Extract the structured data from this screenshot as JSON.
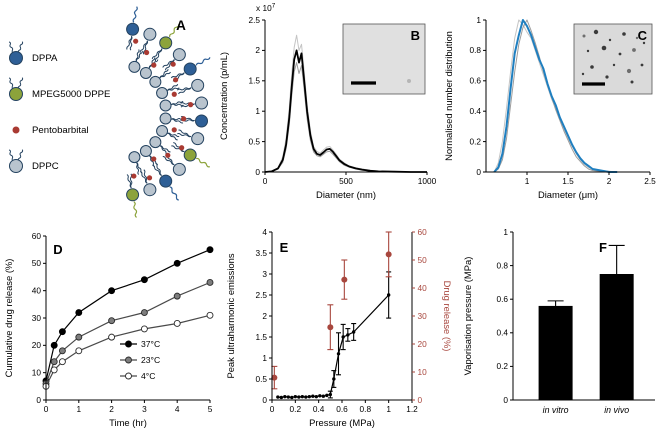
{
  "figure": {
    "background": "#ffffff",
    "panel_A": {
      "letter": "A",
      "legend": [
        {
          "label": "DPPA",
          "color": "#2e5f96",
          "icon": "lipid-icon"
        },
        {
          "label": "MPEG5000 DPPE",
          "color": "#8ca33b",
          "icon": "lipid-peg-icon"
        },
        {
          "label": "Pentobarbital",
          "color": "#a93a32",
          "icon": "drug-dot-icon"
        },
        {
          "label": "DPPC",
          "color": "#b9c4ce",
          "icon": "lipid-icon"
        }
      ],
      "schematic": {
        "outline_color": "#24425f",
        "default_head_color": "#b9c4ce",
        "accent_head_colors": [
          "#2e5f96",
          "#8ca33b"
        ],
        "inner_head_color": "#b9c4ce",
        "drug_dot_color": "#a93a32"
      }
    }
  },
  "chart_data": [
    {
      "panel": "B",
      "type": "line",
      "xlabel": "Diameter (nm)",
      "ylabel": "Concentration (p/mL)",
      "scale_prefix": "x 10",
      "scale_exponent": "7",
      "xlim": [
        0,
        1000
      ],
      "ylim": [
        0,
        2.5
      ],
      "xtick_values": [
        0,
        500,
        1000
      ],
      "xtick_labels": [
        "0",
        "500",
        "1000"
      ],
      "ytick_values": [
        0,
        0.5,
        1,
        1.5,
        2,
        2.5
      ],
      "ytick_labels": [
        "0",
        "0.5",
        "1",
        "1.5",
        "2",
        "2.5"
      ],
      "x": [
        0,
        40,
        80,
        110,
        130,
        150,
        165,
        180,
        195,
        210,
        225,
        240,
        260,
        280,
        300,
        320,
        340,
        360,
        380,
        400,
        420,
        440,
        460,
        490,
        520,
        560,
        600,
        650,
        700,
        800,
        900,
        1000
      ],
      "series": [
        {
          "name": "replicate-1",
          "color": "#c4c4c4",
          "width": 1,
          "y": [
            0,
            0.01,
            0.07,
            0.25,
            0.55,
            1.05,
            1.6,
            2.05,
            2.25,
            2.0,
            2.1,
            1.7,
            1.1,
            0.68,
            0.42,
            0.34,
            0.31,
            0.36,
            0.41,
            0.42,
            0.36,
            0.29,
            0.21,
            0.15,
            0.1,
            0.07,
            0.05,
            0.03,
            0.015,
            0.007,
            0,
            0
          ]
        },
        {
          "name": "replicate-2",
          "color": "#9d9d9d",
          "width": 1,
          "y": [
            0,
            0.005,
            0.05,
            0.16,
            0.38,
            0.78,
            1.25,
            1.65,
            1.8,
            1.62,
            1.75,
            1.4,
            0.88,
            0.52,
            0.33,
            0.27,
            0.25,
            0.29,
            0.33,
            0.34,
            0.29,
            0.23,
            0.17,
            0.11,
            0.08,
            0.05,
            0.03,
            0.018,
            0.008,
            0.004,
            0,
            0
          ]
        },
        {
          "name": "mean",
          "color": "#000000",
          "width": 1.8,
          "y": [
            0,
            0.01,
            0.06,
            0.2,
            0.45,
            0.9,
            1.4,
            1.85,
            2.0,
            1.8,
            1.95,
            1.55,
            1.0,
            0.6,
            0.38,
            0.3,
            0.28,
            0.32,
            0.37,
            0.38,
            0.33,
            0.26,
            0.19,
            0.13,
            0.09,
            0.06,
            0.04,
            0.02,
            0.01,
            0.005,
            0,
            0
          ]
        }
      ],
      "inset": {
        "description": "micrograph",
        "background": "#e0e0e0",
        "has_scalebar": true
      }
    },
    {
      "panel": "C",
      "type": "line",
      "xlabel": "Diameter (μm)",
      "ylabel": "Normalised number distribution",
      "xlim": [
        0.5,
        2.5
      ],
      "ylim": [
        0,
        1
      ],
      "xtick_values": [
        1,
        1.5,
        2,
        2.5
      ],
      "xtick_labels": [
        "1",
        "1.5",
        "2",
        "2.5"
      ],
      "ytick_values": [
        0,
        0.2,
        0.4,
        0.6,
        0.8,
        1
      ],
      "ytick_labels": [
        "0",
        "0.2",
        "0.4",
        "0.6",
        "0.8",
        "1"
      ],
      "x": [
        0.6,
        0.65,
        0.7,
        0.75,
        0.8,
        0.85,
        0.9,
        0.95,
        1.0,
        1.05,
        1.1,
        1.15,
        1.2,
        1.25,
        1.3,
        1.35,
        1.4,
        1.45,
        1.5,
        1.55,
        1.6,
        1.65,
        1.7,
        1.75,
        1.8,
        1.9,
        2.0,
        2.1
      ],
      "series": [
        {
          "name": "replicate-1",
          "color": "#c4c4c4",
          "width": 1,
          "y": [
            0,
            0.06,
            0.2,
            0.42,
            0.66,
            0.88,
            1.0,
            0.97,
            0.92,
            0.88,
            0.8,
            0.72,
            0.64,
            0.56,
            0.48,
            0.42,
            0.35,
            0.28,
            0.22,
            0.17,
            0.12,
            0.08,
            0.05,
            0.03,
            0.02,
            0.01,
            0.005,
            0
          ]
        },
        {
          "name": "replicate-2",
          "color": "#9d9d9d",
          "width": 1,
          "y": [
            0,
            0.02,
            0.08,
            0.22,
            0.44,
            0.66,
            0.84,
            0.95,
            1.0,
            0.93,
            0.85,
            0.76,
            0.66,
            0.57,
            0.49,
            0.41,
            0.34,
            0.27,
            0.21,
            0.15,
            0.1,
            0.07,
            0.04,
            0.02,
            0.01,
            0.005,
            0,
            0
          ]
        },
        {
          "name": "mean",
          "color": "#1f7fc0",
          "width": 2,
          "y": [
            0,
            0.03,
            0.12,
            0.3,
            0.55,
            0.78,
            0.9,
            1.0,
            0.96,
            0.9,
            0.82,
            0.74,
            0.68,
            0.58,
            0.5,
            0.44,
            0.36,
            0.3,
            0.24,
            0.18,
            0.13,
            0.09,
            0.06,
            0.04,
            0.02,
            0.01,
            0,
            0
          ]
        }
      ],
      "inset": {
        "description": "micrograph with droplets",
        "background": "#dadada",
        "has_scalebar": true
      }
    },
    {
      "panel": "D",
      "type": "line",
      "xlabel": "Time (hr)",
      "ylabel": "Cumulative drug release (%)",
      "xlim": [
        0,
        5
      ],
      "ylim": [
        0,
        60
      ],
      "xtick_values": [
        0,
        1,
        2,
        3,
        4,
        5
      ],
      "xtick_labels": [
        "0",
        "1",
        "2",
        "3",
        "4",
        "5"
      ],
      "ytick_values": [
        0,
        10,
        20,
        30,
        40,
        50,
        60
      ],
      "ytick_labels": [
        "0",
        "10",
        "20",
        "30",
        "40",
        "50",
        "60"
      ],
      "series": [
        {
          "name": "37°C",
          "marker": "filled-circle",
          "marker_fill": "#000000",
          "marker_stroke": "#000000",
          "line_color": "#000000",
          "x": [
            0,
            0.25,
            0.5,
            1,
            2,
            3,
            4,
            5
          ],
          "y": [
            7,
            20,
            25,
            32,
            40,
            44,
            50,
            55
          ]
        },
        {
          "name": "23°C",
          "marker": "gray-circle",
          "marker_fill": "#7d7d7d",
          "marker_stroke": "#2b2b2b",
          "line_color": "#4a4a4a",
          "x": [
            0,
            0.25,
            0.5,
            1,
            2,
            3,
            4,
            5
          ],
          "y": [
            6,
            14,
            18,
            23,
            29,
            32,
            38,
            43
          ]
        },
        {
          "name": "4°C",
          "marker": "open-circle",
          "marker_fill": "#ffffff",
          "marker_stroke": "#2b2b2b",
          "line_color": "#4a4a4a",
          "x": [
            0,
            0.25,
            0.5,
            1,
            2,
            3,
            4,
            5
          ],
          "y": [
            5,
            11,
            14,
            18,
            23,
            26,
            28,
            31
          ]
        }
      ],
      "legend": {
        "position": "bottom-right",
        "entries": [
          "37°C",
          "23°C",
          "4°C"
        ]
      }
    },
    {
      "panel": "E",
      "type": "dual-axis line+scatter",
      "xlabel": "Pressure (MPa)",
      "ylabel_left": "Peak ultraharmonic emissions",
      "ylabel_right": "Drug release (%)",
      "xlim": [
        0,
        1.2
      ],
      "ylim_left": [
        0,
        4
      ],
      "ylim_right": [
        0,
        60
      ],
      "xtick_values": [
        0,
        0.2,
        0.4,
        0.6,
        0.8,
        1,
        1.2
      ],
      "xtick_labels": [
        "0",
        "0.2",
        "0.4",
        "0.6",
        "0.8",
        "1",
        "1.2"
      ],
      "ytick_left_values": [
        0,
        0.5,
        1,
        1.5,
        2,
        2.5,
        3,
        3.5,
        4
      ],
      "ytick_left_labels": [
        "0",
        "0.5",
        "1",
        "1.5",
        "2",
        "2.5",
        "3",
        "3.5",
        "4"
      ],
      "ytick_right_values": [
        0,
        10,
        20,
        30,
        40,
        50,
        60
      ],
      "ytick_right_labels": [
        "0",
        "10",
        "20",
        "30",
        "40",
        "50",
        "60"
      ],
      "right_axis_color": "#a8473e",
      "series_left": {
        "name": "peak-ultraharmonic-emissions",
        "color": "#000000",
        "x": [
          0.05,
          0.08,
          0.11,
          0.14,
          0.17,
          0.2,
          0.23,
          0.26,
          0.29,
          0.32,
          0.35,
          0.38,
          0.41,
          0.44,
          0.47,
          0.5,
          0.53,
          0.57,
          0.61,
          0.65,
          0.7,
          1.0
        ],
        "y": [
          0.07,
          0.06,
          0.08,
          0.07,
          0.06,
          0.08,
          0.07,
          0.08,
          0.07,
          0.08,
          0.09,
          0.08,
          0.1,
          0.09,
          0.11,
          0.13,
          0.5,
          1.1,
          1.5,
          1.55,
          1.62,
          2.5
        ],
        "err": [
          0,
          0,
          0,
          0,
          0,
          0,
          0,
          0,
          0,
          0,
          0,
          0,
          0,
          0,
          0,
          0.08,
          0.2,
          0.5,
          0.3,
          0.15,
          0.2,
          0.55
        ]
      },
      "series_right": {
        "name": "drug-release",
        "color": "#a8473e",
        "x": [
          0.02,
          0.5,
          0.62,
          1.0
        ],
        "y": [
          8,
          26,
          43,
          52
        ],
        "err": [
          4,
          8,
          7,
          8
        ]
      }
    },
    {
      "panel": "F",
      "type": "bar",
      "ylabel": "Vaporisation pressure (MPa)",
      "categories": [
        "in vitro",
        "in vivo"
      ],
      "values": [
        0.56,
        0.75
      ],
      "errors": [
        0.03,
        0.17
      ],
      "ylim": [
        0,
        1
      ],
      "ytick_values": [
        0,
        0.2,
        0.4,
        0.6,
        0.8,
        1
      ],
      "ytick_labels": [
        "0",
        "0.2",
        "0.4",
        "0.6",
        "0.8",
        "1"
      ],
      "bar_color": "#000000",
      "italic_categories": true
    }
  ]
}
